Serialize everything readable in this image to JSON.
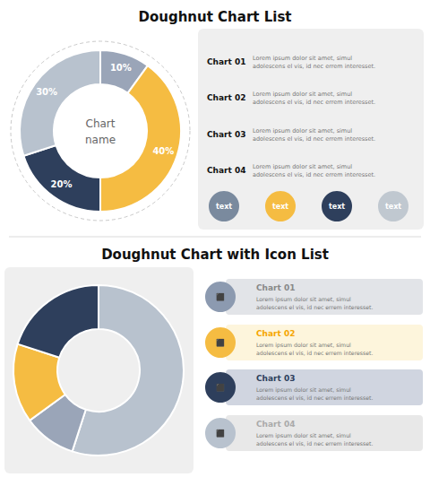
{
  "chart_data": [
    {
      "type": "pie",
      "title": "Doughnut Chart List",
      "values": [
        10,
        40,
        20,
        30
      ],
      "value_labels": [
        "10%",
        "40%",
        "20%",
        "30%"
      ],
      "colors": [
        "#9aa5b8",
        "#f5bc42",
        "#2e3f5c",
        "#b8c2ce"
      ],
      "data_labels": true,
      "annotations": [
        "Chart",
        "name",
        "Chart 01",
        "Lorem ipsum dolor sit amet, simul\nadolescens el vis, id nec errem interesset.",
        "Chart 02",
        "Lorem ipsum dolor sit amet, simul\nadolescens el vis, id nec errem interesset.",
        "Chart 03",
        "Lorem ipsum dolor sit amet, simul\nadolescens el vis, id nec errem interesset.",
        "Chart 04",
        "Lorem ipsum dolor sit amet, simul\nadolescens el vis, id nec errem interesset.",
        "text",
        "text",
        "text",
        "text"
      ]
    },
    {
      "type": "pie",
      "title": "Doughnut Chart with Icon List",
      "values": [
        55,
        10,
        15,
        20
      ],
      "colors": [
        "#b8c2ce",
        "#9aa5b8",
        "#f5bc42",
        "#2e3f5c"
      ],
      "data_labels": false,
      "annotations": [
        "⬛",
        "Chart 01",
        "Lorem ipsum dolor sit amet, simul\nadolescens el vis, id nec errem interesset.",
        "⬛",
        "Chart 02",
        "Lorem ipsum dolor sit amet, simul\nadolescens el vis, id nec errem interesset.",
        "⬛",
        "Chart 03",
        "Lorem ipsum dolor sit amet, simul\nadolescens el vis, id nec errem interesset.",
        "⬛",
        "Chart 04",
        "Lorem ipsum dolor sit amet, simul\nadolescens el vis, id nec errem interesset."
      ]
    }
  ]
}
